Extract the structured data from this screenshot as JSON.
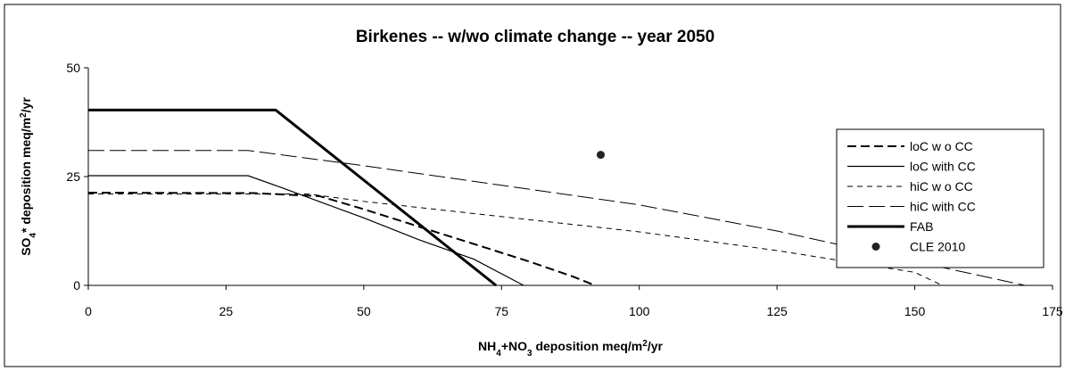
{
  "chart_data": {
    "type": "line",
    "title": "Birkenes -- w/wo climate change -- year 2050",
    "xlabel": [
      {
        "text": "NH"
      },
      {
        "text": "4",
        "style": "sub"
      },
      {
        "text": "+NO"
      },
      {
        "text": "3",
        "style": "sub"
      },
      {
        "text": " deposition meq/m"
      },
      {
        "text": "2",
        "style": "sup"
      },
      {
        "text": "/yr"
      }
    ],
    "ylabel": [
      {
        "text": "SO"
      },
      {
        "text": "4",
        "style": "sub"
      },
      {
        "text": "* deposition meq/m"
      },
      {
        "text": "2",
        "style": "sup"
      },
      {
        "text": "/yr"
      }
    ],
    "xlim": [
      0,
      175
    ],
    "xticks": [
      0,
      25,
      50,
      75,
      100,
      125,
      150,
      175
    ],
    "ylim": [
      0,
      50
    ],
    "yticks": [
      0,
      25,
      50
    ],
    "grid": false,
    "legend": "right",
    "series": [
      {
        "name": "loC w o CC",
        "color": "#000000",
        "dash": "10,5",
        "width": 2,
        "x": [
          0,
          30,
          42,
          50,
          60,
          70,
          80,
          88,
          92
        ],
        "values": [
          21.3,
          21.2,
          20.5,
          17.5,
          13.5,
          9.5,
          5.5,
          2,
          0
        ]
      },
      {
        "name": "loC with CC",
        "color": "#000000",
        "dash": "none",
        "width": 1.2,
        "x": [
          0,
          29,
          35,
          50,
          60,
          70,
          79
        ],
        "values": [
          25.2,
          25.2,
          22.5,
          15.5,
          10.5,
          6,
          0
        ]
      },
      {
        "name": "hiC w o CC",
        "color": "#000000",
        "dash": "6,5",
        "width": 1,
        "x": [
          0,
          40,
          50,
          75,
          100,
          125,
          150,
          155
        ],
        "values": [
          21,
          21,
          19.3,
          15.8,
          12.3,
          8,
          3,
          0
        ]
      },
      {
        "name": "hiC with CC",
        "color": "#000000",
        "dash": "18,6",
        "width": 1,
        "x": [
          0,
          29,
          50,
          75,
          100,
          125,
          150,
          170
        ],
        "values": [
          31,
          31,
          27.5,
          23,
          18.5,
          12.5,
          5.5,
          0
        ]
      },
      {
        "name": "FAB",
        "color": "#000000",
        "dash": "none",
        "width": 3,
        "x": [
          0,
          34,
          74
        ],
        "values": [
          40.3,
          40.3,
          0
        ]
      },
      {
        "name": "CLE 2010",
        "color": "#222222",
        "type": "scatter",
        "x": [
          93
        ],
        "values": [
          30
        ]
      }
    ]
  }
}
